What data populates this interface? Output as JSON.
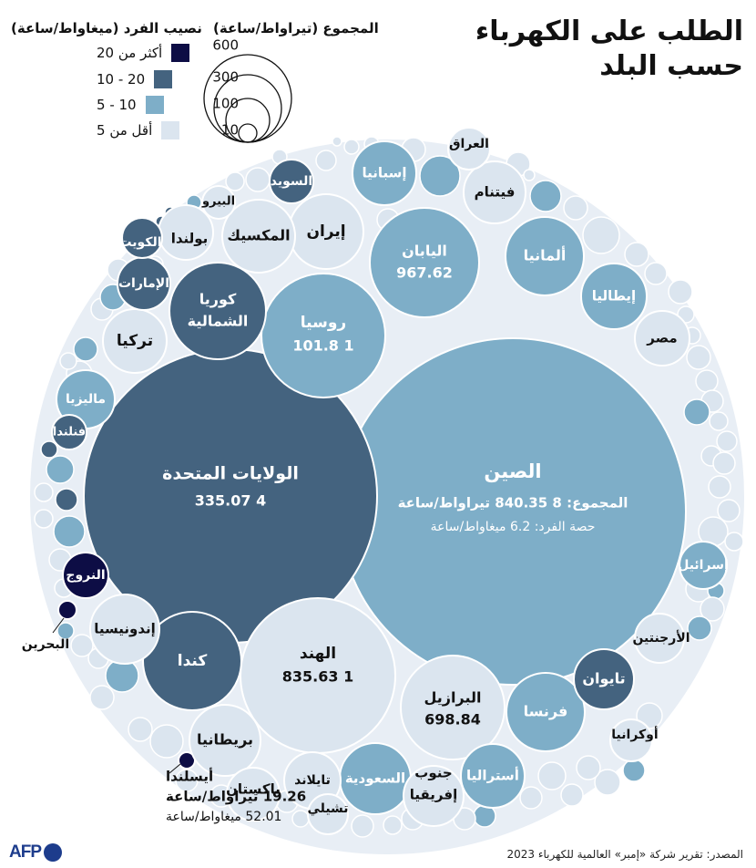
{
  "title_line1": "الطلب على الكهرباء",
  "title_line2": "حسب البلد",
  "legend": {
    "size_title": "المجموع (تيراواط/ساعة)",
    "size_values": [
      "600",
      "300",
      "100",
      "10"
    ],
    "color_title": "نصيب الفرد (ميغاواط/ساعة)",
    "color_items": [
      {
        "label": "أكثر من 20",
        "color": "#0d0d45"
      },
      {
        "label": "20 - 10",
        "color": "#44637f"
      },
      {
        "label": "10 - 5",
        "color": "#7eaec8"
      },
      {
        "label": "أقل من 5",
        "color": "#dbe5ef"
      }
    ]
  },
  "source": "المصدر: تقرير شركة «إمبر» العالمية للكهرباء 2023",
  "logo": "AFP",
  "chart_data": {
    "type": "bubble",
    "size_unit": "تيراواط/ساعة",
    "color_unit": "ميغاواط/ساعة",
    "total_prefix": "المجموع:",
    "per_capita_prefix": "حصة الفرد:",
    "countries": [
      {
        "name": "الصين",
        "total": "8 840.35",
        "per_capita": "6.2",
        "class": "5-10"
      },
      {
        "name": "الولايات المتحدة",
        "total": "4 335.07",
        "class": "10-20"
      },
      {
        "name": "الهند",
        "total": "1 835.63",
        "class": "<5"
      },
      {
        "name": "روسيا",
        "total": "1 101.8",
        "class": "5-10"
      },
      {
        "name": "اليابان",
        "total": "967.62",
        "class": "5-10"
      },
      {
        "name": "البرازيل",
        "total": "698.84",
        "class": "<5"
      },
      {
        "name": "أيسلندا",
        "total": "19.26",
        "per_capita": "52.01",
        "class": ">20"
      },
      {
        "name": "كندا",
        "class": "10-20"
      },
      {
        "name": "كوريا الشمالية",
        "class": "10-20"
      },
      {
        "name": "ألمانيا",
        "class": "5-10"
      },
      {
        "name": "فرنسا",
        "class": "5-10"
      },
      {
        "name": "إيران",
        "class": "<5"
      },
      {
        "name": "المكسيك",
        "class": "<5"
      },
      {
        "name": "السعودية",
        "class": "5-10"
      },
      {
        "name": "بريطانيا",
        "class": "<5"
      },
      {
        "name": "إندونيسيا",
        "class": "<5"
      },
      {
        "name": "تركيا",
        "class": "<5"
      },
      {
        "name": "إيطاليا",
        "class": "5-10"
      },
      {
        "name": "إسبانيا",
        "class": "5-10"
      },
      {
        "name": "تايوان",
        "class": "10-20"
      },
      {
        "name": "أستراليا",
        "class": "5-10"
      },
      {
        "name": "جنوب إفريقيا",
        "class": "<5"
      },
      {
        "name": "تايلاند",
        "class": "<5"
      },
      {
        "name": "فيتنام",
        "class": "<5"
      },
      {
        "name": "مصر",
        "class": "<5"
      },
      {
        "name": "ماليزيا",
        "class": "5-10"
      },
      {
        "name": "بولندا",
        "class": "<5"
      },
      {
        "name": "باكستان",
        "class": "<5"
      },
      {
        "name": "الإمارات",
        "class": "10-20"
      },
      {
        "name": "السويد",
        "class": "10-20"
      },
      {
        "name": "النروج",
        "class": ">20"
      },
      {
        "name": "العراق",
        "class": "<5"
      },
      {
        "name": "الأرجنتين",
        "class": "<5"
      },
      {
        "name": "أوكرانيا",
        "class": "<5"
      },
      {
        "name": "الكويت",
        "class": "10-20"
      },
      {
        "name": "إسرائيل",
        "class": "5-10"
      },
      {
        "name": "تشيلي",
        "class": "<5"
      },
      {
        "name": "فنلندا",
        "class": "10-20"
      },
      {
        "name": "البيرو",
        "class": "<5"
      },
      {
        "name": "البحرين",
        "class": ">20"
      }
    ]
  }
}
